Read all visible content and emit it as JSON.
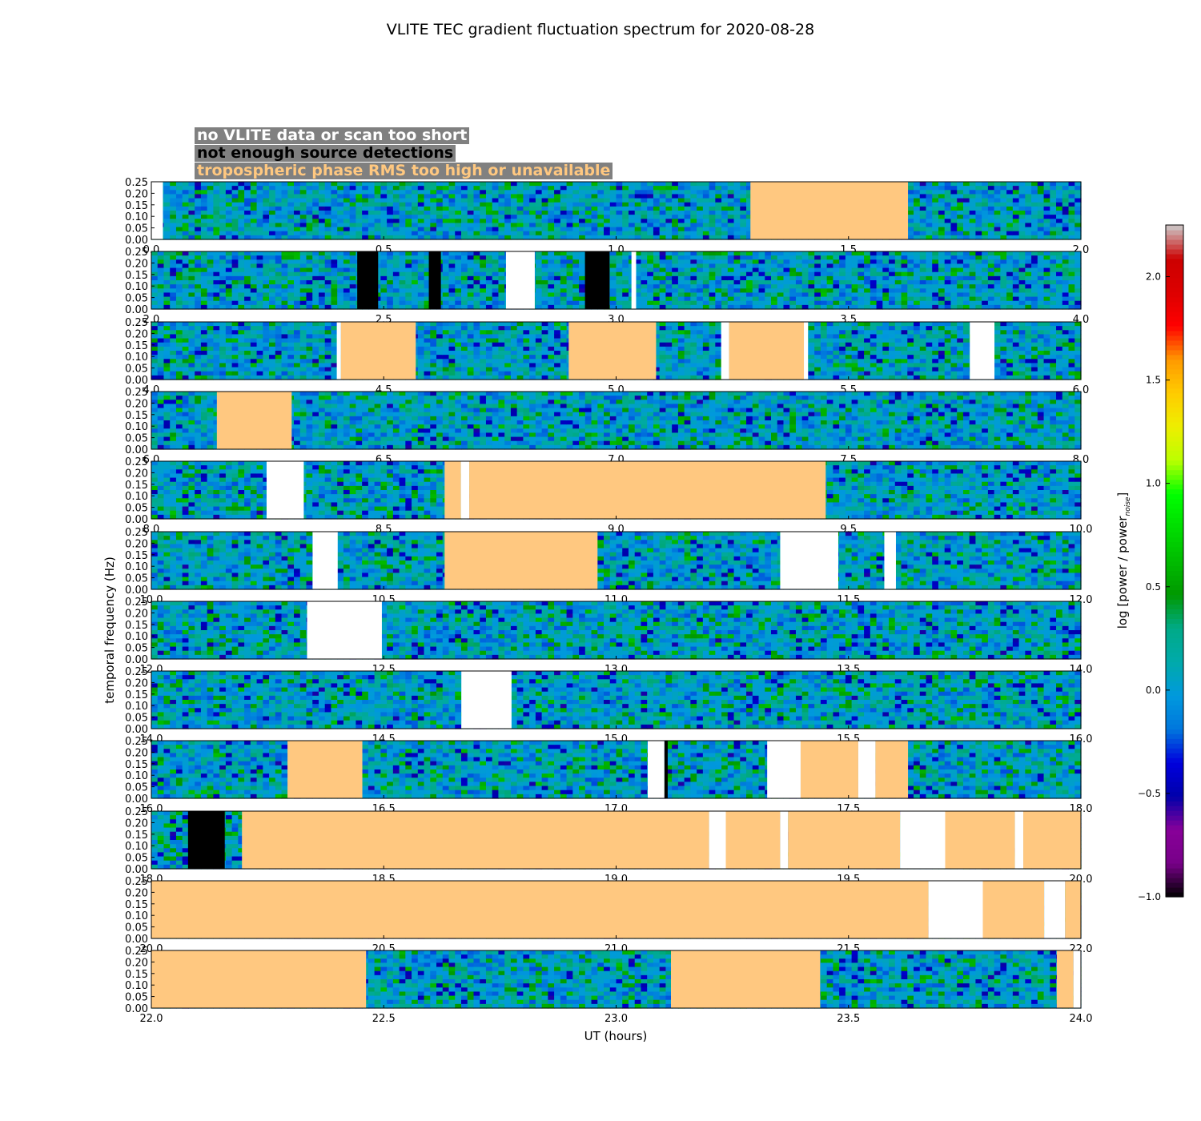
{
  "chart_data": {
    "type": "heatmap",
    "title": "VLITE TEC gradient fluctuation spectrum for 2020-08-28",
    "xlabel": "UT (hours)",
    "ylabel": "temporal frequency (Hz)",
    "colorbar": {
      "label_prefix": "log [power / power",
      "label_subscript": "noise",
      "label_suffix": "]",
      "range": [
        -1.0,
        2.25
      ],
      "ticks": [
        "2.0",
        "1.5",
        "1.0",
        "0.5",
        "0.0",
        "−0.5",
        "−1.0"
      ],
      "tick_values": [
        2.0,
        1.5,
        1.0,
        0.5,
        0.0,
        -0.5,
        -1.0
      ],
      "colormap": "nipy_spectral"
    },
    "legend": [
      {
        "label": "no VLITE data or scan too short",
        "text_color": "#ffffff",
        "box_color": "#808080"
      },
      {
        "label": "not enough source detections",
        "text_color": "#000000",
        "box_color": "#808080"
      },
      {
        "label": "tropospheric phase RMS too high or unavailable",
        "text_color": "#ffc880",
        "box_color": "#808080"
      }
    ],
    "colors": {
      "no_data": "#ffffff",
      "few_detections": "#000000",
      "troposphere": "#ffc880"
    },
    "y_range": [
      0.0,
      0.25
    ],
    "y_ticks": [
      "0.00",
      "0.05",
      "0.10",
      "0.15",
      "0.20",
      "0.25"
    ],
    "panels": [
      {
        "x_range": [
          0.0,
          2.0
        ],
        "x_ticks": [
          "0.0",
          "0.5",
          "1.0",
          "1.5",
          "2.0"
        ],
        "masks": [
          {
            "type": "no_data",
            "start": 0.0,
            "end": 0.025
          },
          {
            "type": "troposphere",
            "start": 1.289,
            "end": 1.628
          }
        ]
      },
      {
        "x_range": [
          2.0,
          4.0
        ],
        "x_ticks": [
          "2.0",
          "2.5",
          "3.0",
          "3.5",
          "4.0"
        ],
        "masks": [
          {
            "type": "few_detections",
            "start": 2.443,
            "end": 2.488
          },
          {
            "type": "few_detections",
            "start": 2.597,
            "end": 2.623
          },
          {
            "type": "no_data",
            "start": 2.763,
            "end": 2.825
          },
          {
            "type": "few_detections",
            "start": 2.933,
            "end": 2.986
          },
          {
            "type": "no_data",
            "start": 3.033,
            "end": 3.043
          }
        ]
      },
      {
        "x_range": [
          4.0,
          6.0
        ],
        "x_ticks": [
          "4.0",
          "4.5",
          "5.0",
          "5.5",
          "6.0"
        ],
        "masks": [
          {
            "type": "no_data",
            "start": 4.399,
            "end": 4.408
          },
          {
            "type": "troposphere",
            "start": 4.408,
            "end": 4.569
          },
          {
            "type": "troposphere",
            "start": 4.898,
            "end": 5.086
          },
          {
            "type": "no_data",
            "start": 5.226,
            "end": 5.243
          },
          {
            "type": "troposphere",
            "start": 5.243,
            "end": 5.404
          },
          {
            "type": "no_data",
            "start": 5.404,
            "end": 5.413
          },
          {
            "type": "no_data",
            "start": 5.761,
            "end": 5.814
          }
        ]
      },
      {
        "x_range": [
          6.0,
          8.0
        ],
        "x_ticks": [
          "6.0",
          "6.5",
          "7.0",
          "7.5",
          "8.0"
        ],
        "masks": [
          {
            "type": "troposphere",
            "start": 6.141,
            "end": 6.302
          }
        ]
      },
      {
        "x_range": [
          8.0,
          10.0
        ],
        "x_ticks": [
          "8.0",
          "8.5",
          "9.0",
          "9.5",
          "10.0"
        ],
        "masks": [
          {
            "type": "no_data",
            "start": 8.248,
            "end": 8.328
          },
          {
            "type": "troposphere",
            "start": 8.631,
            "end": 8.666
          },
          {
            "type": "no_data",
            "start": 8.666,
            "end": 8.684
          },
          {
            "type": "troposphere",
            "start": 8.684,
            "end": 9.451
          }
        ]
      },
      {
        "x_range": [
          10.0,
          12.0
        ],
        "x_ticks": [
          "10.0",
          "10.5",
          "11.0",
          "11.5",
          "12.0"
        ],
        "masks": [
          {
            "type": "no_data",
            "start": 10.347,
            "end": 10.401
          },
          {
            "type": "troposphere",
            "start": 10.631,
            "end": 10.96
          },
          {
            "type": "no_data",
            "start": 11.353,
            "end": 11.478
          },
          {
            "type": "no_data",
            "start": 11.577,
            "end": 11.602
          }
        ]
      },
      {
        "x_range": [
          12.0,
          14.0
        ],
        "x_ticks": [
          "12.0",
          "12.5",
          "13.0",
          "13.5",
          "14.0"
        ],
        "masks": [
          {
            "type": "no_data",
            "start": 12.335,
            "end": 12.496
          }
        ]
      },
      {
        "x_range": [
          14.0,
          16.0
        ],
        "x_ticks": [
          "14.0",
          "14.5",
          "15.0",
          "15.5",
          "16.0"
        ],
        "masks": [
          {
            "type": "no_data",
            "start": 14.667,
            "end": 14.775
          }
        ]
      },
      {
        "x_range": [
          16.0,
          18.0
        ],
        "x_ticks": [
          "16.0",
          "16.5",
          "17.0",
          "17.5",
          "18.0"
        ],
        "masks": [
          {
            "type": "troposphere",
            "start": 16.293,
            "end": 16.454
          },
          {
            "type": "no_data",
            "start": 17.068,
            "end": 17.104
          },
          {
            "type": "few_detections",
            "start": 17.104,
            "end": 17.111
          },
          {
            "type": "no_data",
            "start": 17.325,
            "end": 17.397
          },
          {
            "type": "troposphere",
            "start": 17.397,
            "end": 17.521
          },
          {
            "type": "no_data",
            "start": 17.521,
            "end": 17.558
          },
          {
            "type": "troposphere",
            "start": 17.558,
            "end": 17.628
          }
        ]
      },
      {
        "x_range": [
          18.0,
          20.0
        ],
        "x_ticks": [
          "18.0",
          "18.5",
          "19.0",
          "19.5",
          "20.0"
        ],
        "masks": [
          {
            "type": "few_detections",
            "start": 18.079,
            "end": 18.158
          },
          {
            "type": "troposphere",
            "start": 18.195,
            "end": 19.2
          },
          {
            "type": "no_data",
            "start": 19.2,
            "end": 19.236
          },
          {
            "type": "troposphere",
            "start": 19.236,
            "end": 19.353
          },
          {
            "type": "no_data",
            "start": 19.353,
            "end": 19.37
          },
          {
            "type": "troposphere",
            "start": 19.37,
            "end": 19.611
          },
          {
            "type": "no_data",
            "start": 19.611,
            "end": 19.708
          },
          {
            "type": "troposphere",
            "start": 19.708,
            "end": 19.858
          },
          {
            "type": "no_data",
            "start": 19.858,
            "end": 19.876
          },
          {
            "type": "troposphere",
            "start": 19.876,
            "end": 20.0
          }
        ]
      },
      {
        "x_range": [
          20.0,
          22.0
        ],
        "x_ticks": [
          "20.0",
          "20.5",
          "21.0",
          "21.5",
          "22.0"
        ],
        "masks": [
          {
            "type": "troposphere",
            "start": 20.0,
            "end": 21.672
          },
          {
            "type": "no_data",
            "start": 21.672,
            "end": 21.789
          },
          {
            "type": "troposphere",
            "start": 21.789,
            "end": 21.921
          },
          {
            "type": "no_data",
            "start": 21.921,
            "end": 21.966
          },
          {
            "type": "troposphere",
            "start": 21.966,
            "end": 22.0
          }
        ]
      },
      {
        "x_range": [
          22.0,
          24.0
        ],
        "x_ticks": [
          "22.0",
          "22.5",
          "23.0",
          "23.5",
          "24.0"
        ],
        "masks": [
          {
            "type": "troposphere",
            "start": 22.0,
            "end": 22.462
          },
          {
            "type": "troposphere",
            "start": 23.118,
            "end": 23.439
          },
          {
            "type": "troposphere",
            "start": 23.948,
            "end": 23.984
          },
          {
            "type": "no_data",
            "start": 23.984,
            "end": 24.0
          }
        ]
      }
    ]
  }
}
